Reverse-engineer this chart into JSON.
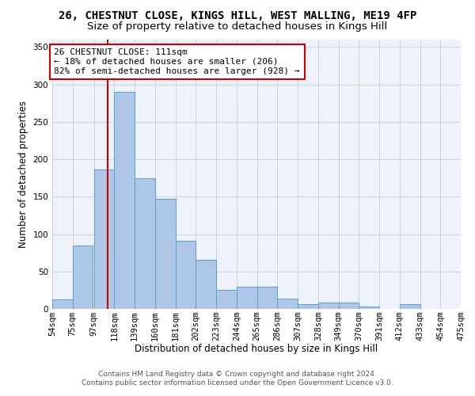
{
  "title": "26, CHESTNUT CLOSE, KINGS HILL, WEST MALLING, ME19 4FP",
  "subtitle": "Size of property relative to detached houses in Kings Hill",
  "xlabel": "Distribution of detached houses by size in Kings Hill",
  "ylabel": "Number of detached properties",
  "bin_edges": [
    54,
    75,
    97,
    118,
    139,
    160,
    181,
    202,
    223,
    244,
    265,
    286,
    307,
    328,
    349,
    370,
    391,
    412,
    433,
    454,
    475
  ],
  "bin_labels": [
    "54sqm",
    "75sqm",
    "97sqm",
    "118sqm",
    "139sqm",
    "160sqm",
    "181sqm",
    "202sqm",
    "223sqm",
    "244sqm",
    "265sqm",
    "286sqm",
    "307sqm",
    "328sqm",
    "349sqm",
    "370sqm",
    "391sqm",
    "412sqm",
    "433sqm",
    "454sqm",
    "475sqm"
  ],
  "bar_heights": [
    13,
    85,
    186,
    290,
    175,
    147,
    91,
    66,
    25,
    30,
    30,
    14,
    6,
    8,
    8,
    3,
    0,
    6,
    0,
    0
  ],
  "bar_color": "#aec6e8",
  "bar_edge_color": "#5a9fd4",
  "property_value": 111,
  "vline_color": "#cc0000",
  "annotation_line1": "26 CHESTNUT CLOSE: 111sqm",
  "annotation_line2": "← 18% of detached houses are smaller (206)",
  "annotation_line3": "82% of semi-detached houses are larger (928) →",
  "annotation_box_color": "#ffffff",
  "annotation_box_edge_color": "#cc0000",
  "ylim": [
    0,
    360
  ],
  "yticks": [
    0,
    50,
    100,
    150,
    200,
    250,
    300,
    350
  ],
  "footer_line1": "Contains HM Land Registry data © Crown copyright and database right 2024.",
  "footer_line2": "Contains public sector information licensed under the Open Government Licence v3.0.",
  "background_color": "#eef2fb",
  "grid_color": "#c8d0e8",
  "title_fontsize": 10,
  "subtitle_fontsize": 9.5,
  "axis_label_fontsize": 8.5,
  "tick_fontsize": 7.5,
  "annotation_fontsize": 8,
  "footer_fontsize": 6.5
}
